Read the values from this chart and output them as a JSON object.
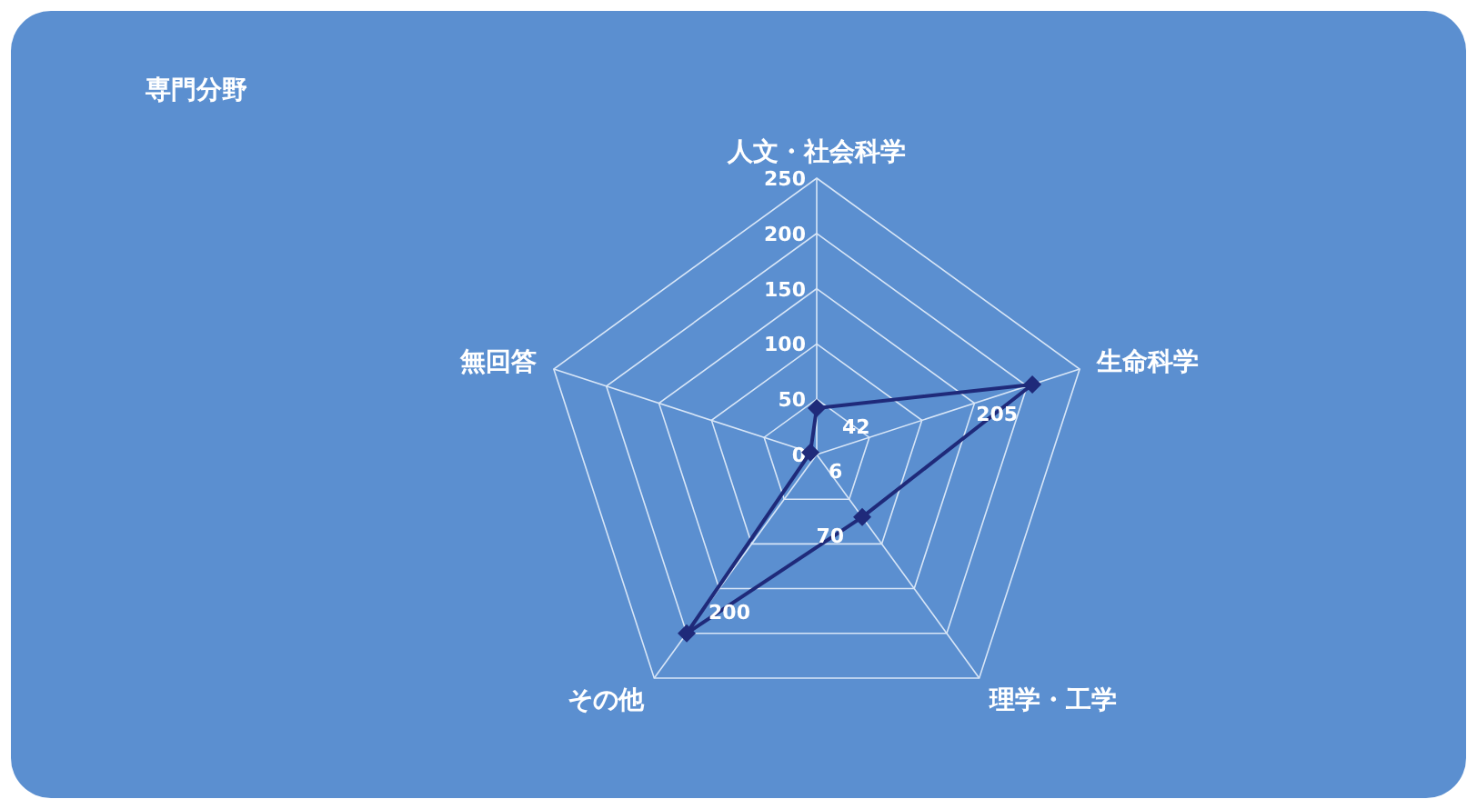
{
  "chart_data": {
    "type": "radar",
    "title": "専門分野",
    "categories": [
      "人文・社会科学",
      "生命科学",
      "理学・工学",
      "その他",
      "無回答"
    ],
    "series": [
      {
        "color": "#1f2a7a",
        "values": [
          42,
          205,
          70,
          200,
          6
        ]
      }
    ],
    "ylim": [
      0,
      250
    ],
    "yticks": [
      0,
      50,
      100,
      150,
      200,
      250
    ],
    "marker": "diamond",
    "grid": true,
    "data_labels": true
  }
}
